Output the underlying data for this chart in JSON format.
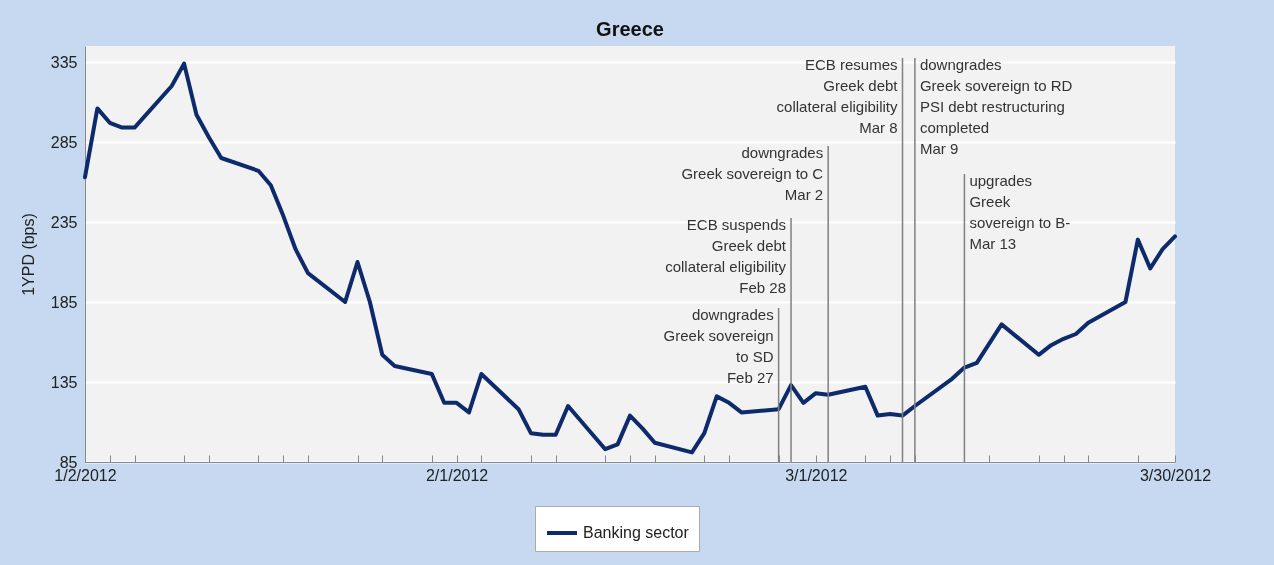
{
  "chart_data": {
    "type": "line",
    "title": "Greece",
    "ylabel": "1YPD (bps)",
    "x": [
      "2012-01-02",
      "2012-01-03",
      "2012-01-04",
      "2012-01-05",
      "2012-01-06",
      "2012-01-09",
      "2012-01-10",
      "2012-01-11",
      "2012-01-12",
      "2012-01-13",
      "2012-01-16",
      "2012-01-17",
      "2012-01-18",
      "2012-01-19",
      "2012-01-20",
      "2012-01-23",
      "2012-01-24",
      "2012-01-25",
      "2012-01-26",
      "2012-01-27",
      "2012-01-30",
      "2012-01-31",
      "2012-02-01",
      "2012-02-02",
      "2012-02-03",
      "2012-02-06",
      "2012-02-07",
      "2012-02-08",
      "2012-02-09",
      "2012-02-10",
      "2012-02-13",
      "2012-02-14",
      "2012-02-15",
      "2012-02-16",
      "2012-02-17",
      "2012-02-20",
      "2012-02-21",
      "2012-02-22",
      "2012-02-23",
      "2012-02-24",
      "2012-02-27",
      "2012-02-28",
      "2012-02-29",
      "2012-03-01",
      "2012-03-02",
      "2012-03-05",
      "2012-03-06",
      "2012-03-07",
      "2012-03-08",
      "2012-03-09",
      "2012-03-12",
      "2012-03-13",
      "2012-03-14",
      "2012-03-15",
      "2012-03-16",
      "2012-03-19",
      "2012-03-20",
      "2012-03-21",
      "2012-03-22",
      "2012-03-23",
      "2012-03-26",
      "2012-03-27",
      "2012-03-28",
      "2012-03-29",
      "2012-03-30"
    ],
    "series": [
      {
        "name": "Banking sector",
        "color": "#0d2a6b",
        "values": [
          263,
          306,
          297,
          294,
          294,
          320,
          334,
          302,
          288,
          275,
          267,
          258,
          239,
          218,
          203,
          185,
          210,
          185,
          152,
          145,
          140,
          122,
          122,
          116,
          140,
          118,
          103,
          102,
          102,
          120,
          93,
          96,
          114,
          106,
          97,
          91,
          103,
          126,
          122,
          116,
          118,
          133,
          122,
          128,
          127,
          132,
          114,
          115,
          114,
          120,
          137,
          144,
          147,
          159,
          171,
          152,
          158,
          162,
          165,
          172,
          185,
          224,
          206,
          218,
          226
        ]
      }
    ],
    "xlim": [
      "2012-01-02",
      "2012-03-30"
    ],
    "xticks": [
      {
        "value": "2012-01-02",
        "label": "1/2/2012"
      },
      {
        "value": "2012-01-04",
        "label": null
      },
      {
        "value": "2012-01-06",
        "label": null
      },
      {
        "value": "2012-01-10",
        "label": null
      },
      {
        "value": "2012-01-12",
        "label": null
      },
      {
        "value": "2012-01-16",
        "label": null
      },
      {
        "value": "2012-01-18",
        "label": null
      },
      {
        "value": "2012-01-20",
        "label": null
      },
      {
        "value": "2012-01-24",
        "label": null
      },
      {
        "value": "2012-01-26",
        "label": null
      },
      {
        "value": "2012-01-30",
        "label": null
      },
      {
        "value": "2012-02-01",
        "label": "2/1/2012"
      },
      {
        "value": "2012-02-03",
        "label": null
      },
      {
        "value": "2012-02-07",
        "label": null
      },
      {
        "value": "2012-02-09",
        "label": null
      },
      {
        "value": "2012-02-13",
        "label": null
      },
      {
        "value": "2012-02-15",
        "label": null
      },
      {
        "value": "2012-02-17",
        "label": null
      },
      {
        "value": "2012-02-21",
        "label": null
      },
      {
        "value": "2012-02-23",
        "label": null
      },
      {
        "value": "2012-02-27",
        "label": null
      },
      {
        "value": "2012-03-01",
        "label": "3/1/2012"
      },
      {
        "value": "2012-03-05",
        "label": null
      },
      {
        "value": "2012-03-07",
        "label": null
      },
      {
        "value": "2012-03-09",
        "label": null
      },
      {
        "value": "2012-03-13",
        "label": null
      },
      {
        "value": "2012-03-15",
        "label": null
      },
      {
        "value": "2012-03-19",
        "label": null
      },
      {
        "value": "2012-03-21",
        "label": null
      },
      {
        "value": "2012-03-23",
        "label": null
      },
      {
        "value": "2012-03-27",
        "label": null
      },
      {
        "value": "2012-03-30",
        "label": "3/30/2012"
      }
    ],
    "ylim": [
      85,
      345
    ],
    "yticks": [
      85,
      135,
      185,
      235,
      285,
      335
    ],
    "grid": "y",
    "legend": "bottom",
    "marker": "none",
    "line_style": "solid",
    "ref_lines": [
      {
        "axis": "x",
        "value": "2012-02-27",
        "label": "downgrades\nGreek sovereign\nto SD\nFeb 27",
        "color": "#808080"
      },
      {
        "axis": "x",
        "value": "2012-02-28",
        "label": "ECB suspends\nGreek debt\ncollateral eligibility\nFeb 28",
        "color": "#808080"
      },
      {
        "axis": "x",
        "value": "2012-03-02",
        "label": "downgrades\nGreek sovereign to C\nMar 2",
        "color": "#808080"
      },
      {
        "axis": "x",
        "value": "2012-03-08",
        "label": "ECB resumes\nGreek debt\ncollateral eligibility\nMar 8",
        "color": "#808080"
      },
      {
        "axis": "x",
        "value": "2012-03-09",
        "label": "downgrades\nGreek sovereign to RD\nPSI debt restructuring\ncompleted\nMar 9",
        "color": "#808080"
      },
      {
        "axis": "x",
        "value": "2012-03-13",
        "label": "upgrades\nGreek\nsovereign to B-\nMar 13",
        "color": "#808080"
      }
    ]
  }
}
